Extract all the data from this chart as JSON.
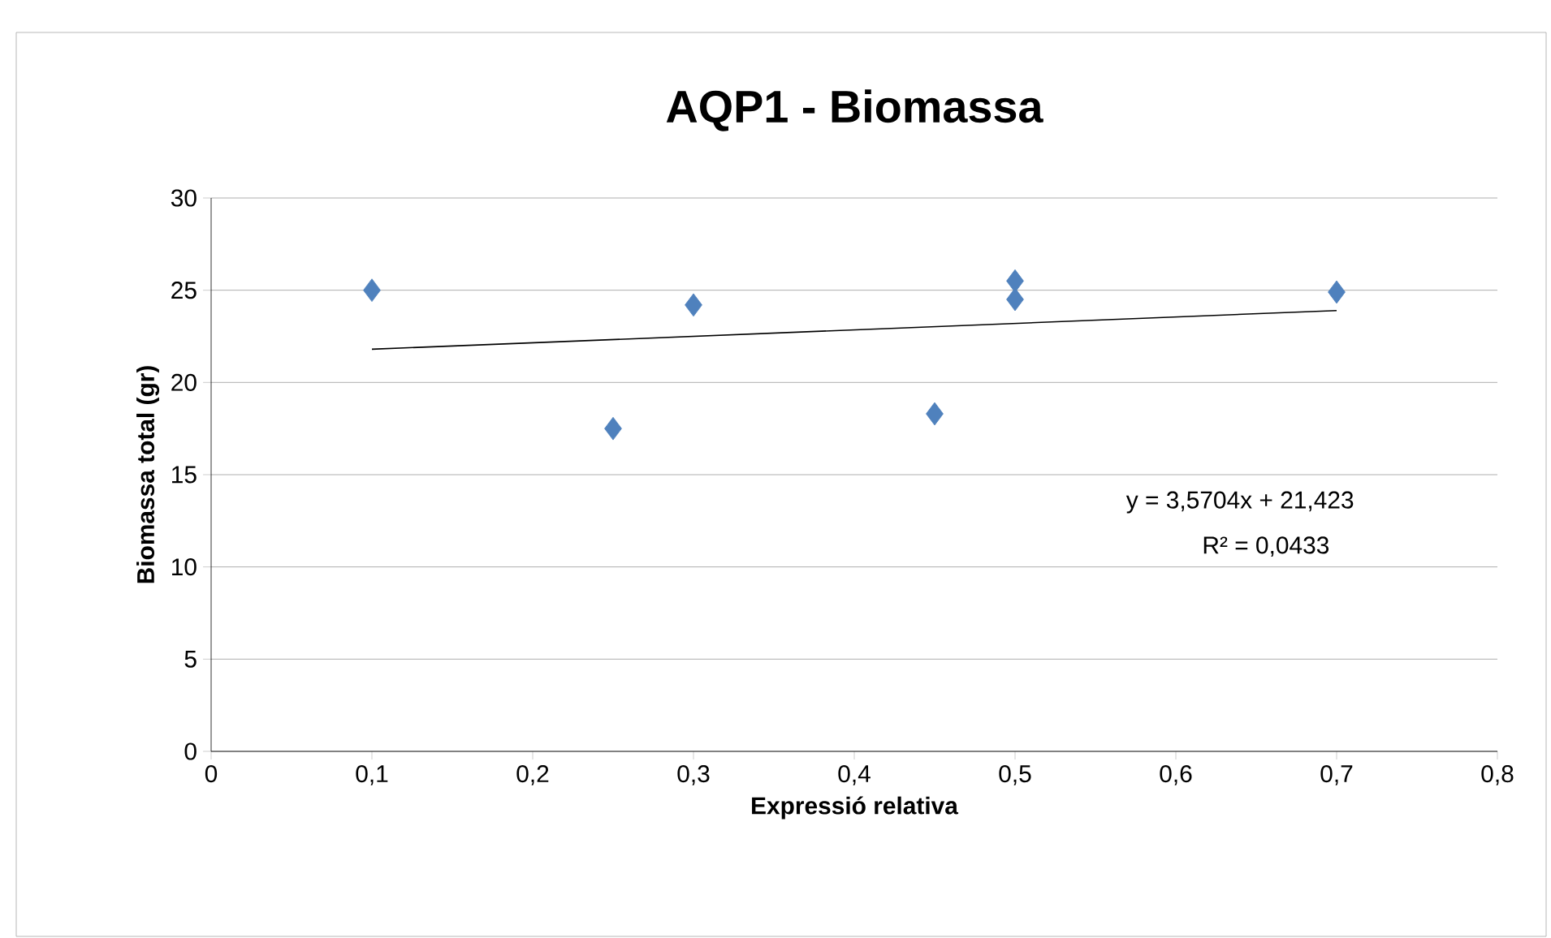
{
  "chart_data": {
    "type": "scatter",
    "title": "AQP1 - Biomassa",
    "xlabel": "Expressió relativa",
    "ylabel": "Biomassa total (gr)",
    "series": [
      {
        "color": "#4f81bd",
        "marker": "diamond",
        "x": [
          0.1,
          0.25,
          0.3,
          0.45,
          0.5,
          0.5,
          0.7
        ],
        "values": [
          25,
          17.5,
          24.2,
          18.3,
          25.5,
          24.5,
          24.9
        ]
      },
      {
        "type": "line",
        "color": "#000000",
        "marker": "none",
        "x": [
          0.1,
          0.7
        ],
        "values": [
          21.8,
          23.9
        ]
      }
    ],
    "xlim": [
      0,
      0.8
    ],
    "xticks": [
      0,
      {
        "value": 0.1,
        "label": "0,1"
      },
      {
        "value": 0.2,
        "label": "0,2"
      },
      {
        "value": 0.3,
        "label": "0,3"
      },
      {
        "value": 0.4,
        "label": "0,4"
      },
      {
        "value": 0.5,
        "label": "0,5"
      },
      {
        "value": 0.6,
        "label": "0,6"
      },
      {
        "value": 0.7,
        "label": "0,7"
      },
      {
        "value": 0.8,
        "label": "0,8"
      }
    ],
    "ylim": [
      0,
      30
    ],
    "yticks": [
      0,
      5,
      10,
      15,
      20,
      25,
      30
    ],
    "grid": "y",
    "annotations": [
      "y = 3,5704x + 21,423",
      "R² = 0,0433"
    ]
  }
}
